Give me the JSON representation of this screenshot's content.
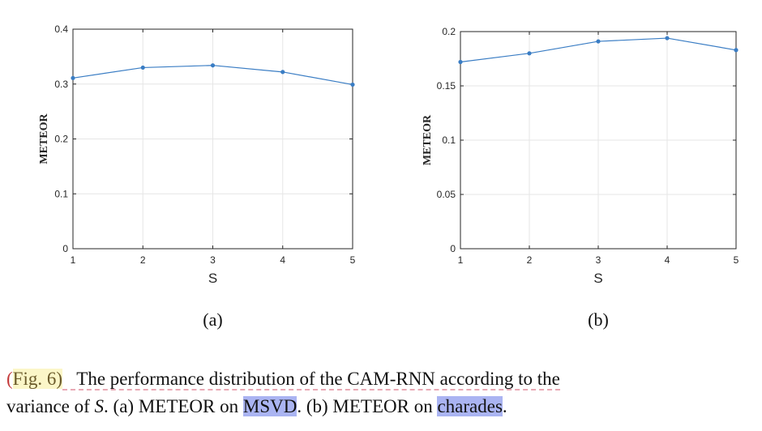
{
  "charts": [
    {
      "type": "line",
      "x": [
        1,
        2,
        3,
        4,
        5
      ],
      "y": [
        0.311,
        0.33,
        0.334,
        0.322,
        0.299
      ],
      "xlim": [
        1,
        5
      ],
      "ylim": [
        0,
        0.4
      ],
      "xticks": [
        "1",
        "2",
        "3",
        "4",
        "5"
      ],
      "yticks": [
        "0",
        "0.1",
        "0.2",
        "0.3",
        "0.4"
      ],
      "xlabel": "S",
      "ylabel": "METEOR",
      "sublabel": "(a)",
      "grid": true,
      "color": "#3a7dc4"
    },
    {
      "type": "line",
      "x": [
        1,
        2,
        3,
        4,
        5
      ],
      "y": [
        0.172,
        0.18,
        0.191,
        0.194,
        0.183
      ],
      "xlim": [
        1,
        5
      ],
      "ylim": [
        0,
        0.2
      ],
      "xticks": [
        "1",
        "2",
        "3",
        "4",
        "5"
      ],
      "yticks": [
        "0",
        "0.05",
        "0.1",
        "0.15",
        "0.2"
      ],
      "xlabel": "S",
      "ylabel": "METEOR",
      "sublabel": "(b)",
      "grid": true,
      "color": "#3a7dc4"
    }
  ],
  "caption": {
    "paren": "(",
    "ref": "Fig. 6)",
    "line1_rest": "The performance distribution of the CAM-RNN according to the",
    "line2_a": "variance of ",
    "line2_s": "S",
    "line2_b": ". (a) METEOR on ",
    "msvd": "MSVD",
    "line2_c": ". (b) METEOR on ",
    "charades": "charades",
    "line2_d": "."
  }
}
